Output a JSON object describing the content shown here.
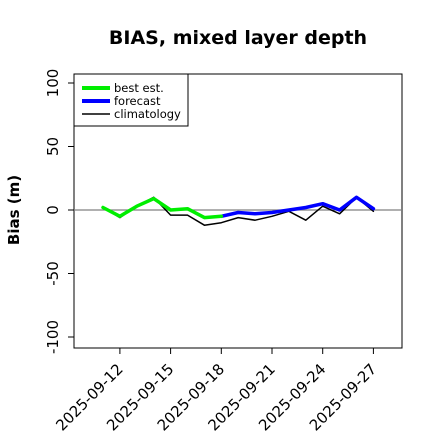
{
  "chart_data": {
    "type": "line",
    "title": "BIAS, mixed layer depth",
    "ylabel": "Bias (m)",
    "xlabel": "",
    "ylim": [
      -110,
      110
    ],
    "y_ticks": [
      "100",
      "50",
      "0",
      "-50",
      "-100"
    ],
    "x_dates": [
      "2025-09-11",
      "2025-09-12",
      "2025-09-13",
      "2025-09-14",
      "2025-09-15",
      "2025-09-16",
      "2025-09-17",
      "2025-09-18",
      "2025-09-19",
      "2025-09-20",
      "2025-09-21",
      "2025-09-22",
      "2025-09-23",
      "2025-09-24",
      "2025-09-25",
      "2025-09-26",
      "2025-09-27"
    ],
    "x_tick_labels": [
      "2025-09-12",
      "2025-09-15",
      "2025-09-18",
      "2025-09-21",
      "2025-09-24",
      "2025-09-27"
    ],
    "highlighted_tick": "2025-09-18",
    "reference_line": 0,
    "legend_position": "top-left",
    "series": [
      {
        "name": "best est.",
        "color": "#00ee00",
        "values": [
          2,
          -5,
          3,
          9,
          0,
          1,
          -6,
          -5,
          null,
          null,
          null,
          null,
          null,
          null,
          null,
          null,
          null
        ]
      },
      {
        "name": "forecast",
        "color": "#0000ff",
        "values": [
          null,
          null,
          null,
          null,
          null,
          null,
          null,
          -5,
          -2,
          -3,
          -2,
          0,
          2,
          5,
          0,
          10,
          1
        ]
      },
      {
        "name": "climatology",
        "color": "#000000",
        "values": [
          2,
          -6,
          3,
          10,
          -4,
          -4,
          -12,
          -10,
          -6,
          -8,
          -5,
          -1,
          -8,
          3,
          -3,
          10,
          -1
        ]
      }
    ]
  },
  "colors": {
    "highlight_tick": "#1a8c1a",
    "zero_line": "#808080"
  }
}
